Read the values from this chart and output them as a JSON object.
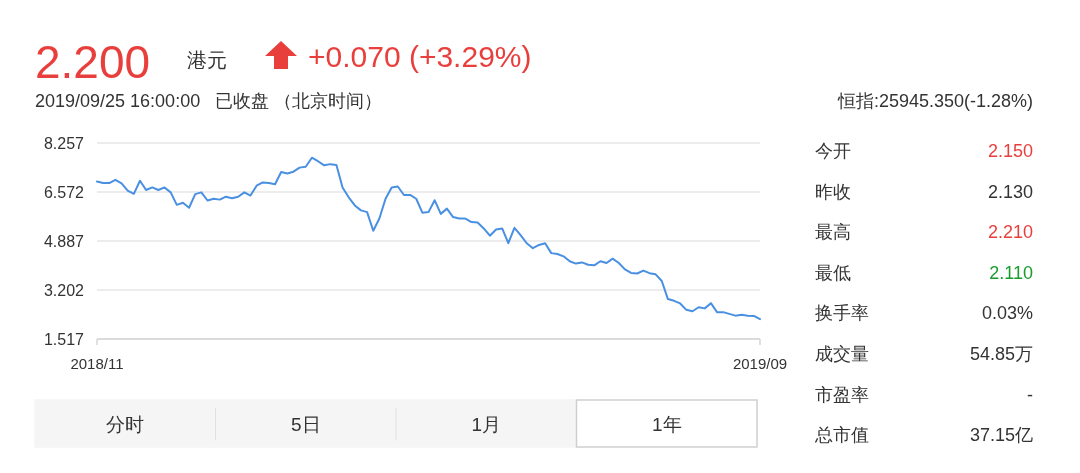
{
  "chart_data": [
    {
      "type": "line",
      "title": "2.200",
      "subtitle": "2019/09/25 16:00:00   已收盘 （北京时间）",
      "annotations": [
        "港元",
        "+0.070 (+3.29%)",
        "恒指:25945.350(-1.28%)",
        "分时",
        "5日",
        "1月",
        "1年"
      ],
      "categories": [
        "2018/11",
        null,
        null,
        null,
        null,
        null,
        null,
        null,
        null,
        null,
        null,
        null,
        null,
        null,
        null,
        null,
        null,
        null,
        null,
        null,
        null,
        null,
        null,
        null,
        null,
        null,
        null,
        null,
        null,
        null,
        null,
        null,
        null,
        null,
        null,
        null,
        null,
        null,
        null,
        null,
        null,
        null,
        null,
        null,
        null,
        null,
        null,
        null,
        null,
        null,
        null,
        null,
        null,
        null,
        null,
        null,
        null,
        null,
        null,
        null,
        null,
        null,
        null,
        null,
        null,
        null,
        null,
        null,
        null,
        null,
        null,
        null,
        null,
        null,
        null,
        null,
        null,
        null,
        null,
        null,
        null,
        null,
        null,
        null,
        null,
        null,
        null,
        null,
        null,
        null,
        null,
        null,
        null,
        null,
        null,
        null,
        null,
        null,
        null,
        null,
        null,
        null,
        null,
        null,
        null,
        null,
        null,
        null,
        "2019/09"
      ],
      "series": [
        {
          "color": "#4a90e2",
          "values": [
            6.93,
            6.88,
            6.88,
            6.99,
            6.87,
            6.62,
            6.51,
            6.96,
            6.64,
            6.73,
            6.64,
            6.73,
            6.56,
            6.13,
            6.2,
            6.03,
            6.5,
            6.56,
            6.28,
            6.34,
            6.31,
            6.41,
            6.36,
            6.41,
            6.56,
            6.45,
            6.79,
            6.9,
            6.88,
            6.84,
            7.26,
            7.21,
            7.27,
            7.41,
            7.44,
            7.75,
            7.63,
            7.49,
            7.53,
            7.5,
            6.73,
            6.39,
            6.11,
            5.94,
            5.88,
            5.24,
            5.66,
            6.34,
            6.73,
            6.76,
            6.47,
            6.47,
            6.34,
            5.86,
            5.88,
            6.29,
            5.82,
            6.0,
            5.71,
            5.66,
            5.66,
            5.54,
            5.52,
            5.32,
            5.07,
            5.28,
            5.32,
            4.81,
            5.34,
            5.09,
            4.81,
            4.64,
            4.75,
            4.81,
            4.47,
            4.44,
            4.36,
            4.19,
            4.11,
            4.15,
            4.07,
            4.05,
            4.19,
            4.13,
            4.28,
            4.13,
            3.91,
            3.79,
            3.77,
            3.87,
            3.78,
            3.74,
            3.51,
            2.89,
            2.83,
            2.74,
            2.52,
            2.47,
            2.61,
            2.57,
            2.75,
            2.44,
            2.44,
            2.38,
            2.32,
            2.35,
            2.32,
            2.31,
            2.2
          ]
        }
      ],
      "ylim": [
        1.517,
        8.257
      ],
      "yticks": [
        1.517,
        3.202,
        4.887,
        6.572,
        8.257
      ],
      "grid": "y"
    },
    {
      "type": "other",
      "categories": [
        "今开",
        "昨收",
        "最高",
        "最低",
        "换手率",
        "成交量",
        "市盈率",
        "总市值"
      ],
      "value_labels": [
        "2.150",
        "2.130",
        "2.210",
        "2.110",
        "0.03%",
        "54.85万",
        "-",
        "37.15亿"
      ],
      "colors": [
        "#e93f3c",
        "#333333",
        "#e93f3c",
        "#1a9b2e",
        "#333333",
        "#333333",
        "#333333",
        "#333333"
      ]
    }
  ]
}
